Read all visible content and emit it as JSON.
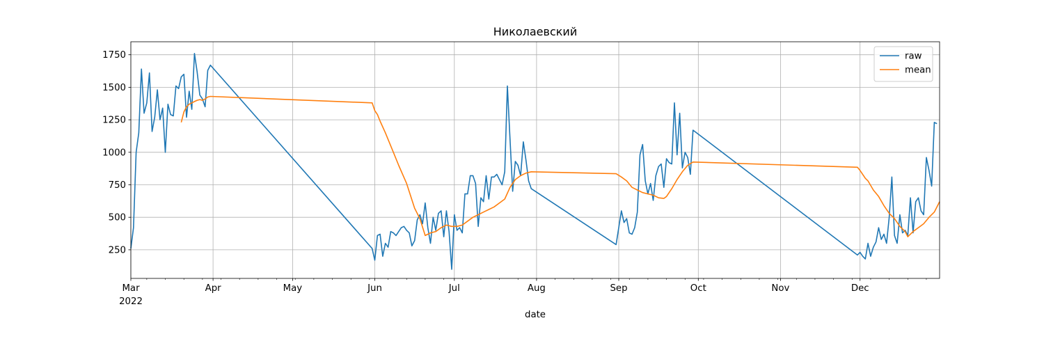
{
  "chart_data": {
    "type": "line",
    "title": "Николаевский",
    "xlabel": "date",
    "ylabel": "",
    "year_label": "2022",
    "x_range": [
      "2022-03-01",
      "2022-12-31"
    ],
    "ylim": [
      30,
      1850
    ],
    "yticks": [
      250,
      500,
      750,
      1000,
      1250,
      1500,
      1750
    ],
    "ytick_labels": [
      "250",
      "500",
      "750",
      "1000",
      "1250",
      "1500",
      "1750"
    ],
    "xticks": [
      {
        "date": "2022-03-01",
        "label": "Mar"
      },
      {
        "date": "2022-04-01",
        "label": "Apr"
      },
      {
        "date": "2022-05-01",
        "label": "May"
      },
      {
        "date": "2022-06-01",
        "label": "Jun"
      },
      {
        "date": "2022-07-01",
        "label": "Jul"
      },
      {
        "date": "2022-08-01",
        "label": "Aug"
      },
      {
        "date": "2022-09-01",
        "label": "Sep"
      },
      {
        "date": "2022-10-01",
        "label": "Oct"
      },
      {
        "date": "2022-11-01",
        "label": "Nov"
      },
      {
        "date": "2022-12-01",
        "label": "Dec"
      }
    ],
    "grid": true,
    "legend_position": "top-right",
    "series": [
      {
        "name": "raw",
        "color": "#1f77b4",
        "points": [
          [
            "2022-03-01",
            260
          ],
          [
            "2022-03-02",
            420
          ],
          [
            "2022-03-03",
            1000
          ],
          [
            "2022-03-04",
            1150
          ],
          [
            "2022-03-05",
            1640
          ],
          [
            "2022-03-06",
            1300
          ],
          [
            "2022-03-07",
            1380
          ],
          [
            "2022-03-08",
            1610
          ],
          [
            "2022-03-09",
            1160
          ],
          [
            "2022-03-10",
            1270
          ],
          [
            "2022-03-11",
            1480
          ],
          [
            "2022-03-12",
            1250
          ],
          [
            "2022-03-13",
            1340
          ],
          [
            "2022-03-14",
            1000
          ],
          [
            "2022-03-15",
            1370
          ],
          [
            "2022-03-16",
            1290
          ],
          [
            "2022-03-17",
            1280
          ],
          [
            "2022-03-18",
            1510
          ],
          [
            "2022-03-19",
            1490
          ],
          [
            "2022-03-20",
            1580
          ],
          [
            "2022-03-21",
            1600
          ],
          [
            "2022-03-22",
            1270
          ],
          [
            "2022-03-23",
            1470
          ],
          [
            "2022-03-24",
            1330
          ],
          [
            "2022-03-25",
            1760
          ],
          [
            "2022-03-26",
            1620
          ],
          [
            "2022-03-27",
            1440
          ],
          [
            "2022-03-28",
            1410
          ],
          [
            "2022-03-29",
            1350
          ],
          [
            "2022-03-30",
            1630
          ],
          [
            "2022-03-31",
            1670
          ],
          [
            "2022-05-31",
            260
          ],
          [
            "2022-06-01",
            170
          ],
          [
            "2022-06-02",
            360
          ],
          [
            "2022-06-03",
            370
          ],
          [
            "2022-06-04",
            200
          ],
          [
            "2022-06-05",
            300
          ],
          [
            "2022-06-06",
            270
          ],
          [
            "2022-06-07",
            390
          ],
          [
            "2022-06-08",
            380
          ],
          [
            "2022-06-09",
            360
          ],
          [
            "2022-06-10",
            390
          ],
          [
            "2022-06-11",
            420
          ],
          [
            "2022-06-12",
            430
          ],
          [
            "2022-06-13",
            400
          ],
          [
            "2022-06-14",
            380
          ],
          [
            "2022-06-15",
            280
          ],
          [
            "2022-06-16",
            320
          ],
          [
            "2022-06-17",
            480
          ],
          [
            "2022-06-18",
            520
          ],
          [
            "2022-06-19",
            450
          ],
          [
            "2022-06-20",
            610
          ],
          [
            "2022-06-21",
            420
          ],
          [
            "2022-06-22",
            300
          ],
          [
            "2022-06-23",
            500
          ],
          [
            "2022-06-24",
            400
          ],
          [
            "2022-06-25",
            530
          ],
          [
            "2022-06-26",
            550
          ],
          [
            "2022-06-27",
            350
          ],
          [
            "2022-06-28",
            550
          ],
          [
            "2022-06-29",
            390
          ],
          [
            "2022-06-30",
            100
          ],
          [
            "2022-07-01",
            520
          ],
          [
            "2022-07-02",
            400
          ],
          [
            "2022-07-03",
            420
          ],
          [
            "2022-07-04",
            380
          ],
          [
            "2022-07-05",
            680
          ],
          [
            "2022-07-06",
            680
          ],
          [
            "2022-07-07",
            820
          ],
          [
            "2022-07-08",
            820
          ],
          [
            "2022-07-09",
            760
          ],
          [
            "2022-07-10",
            430
          ],
          [
            "2022-07-11",
            650
          ],
          [
            "2022-07-12",
            620
          ],
          [
            "2022-07-13",
            820
          ],
          [
            "2022-07-14",
            640
          ],
          [
            "2022-07-15",
            810
          ],
          [
            "2022-07-16",
            810
          ],
          [
            "2022-07-17",
            830
          ],
          [
            "2022-07-18",
            790
          ],
          [
            "2022-07-19",
            750
          ],
          [
            "2022-07-20",
            850
          ],
          [
            "2022-07-21",
            1510
          ],
          [
            "2022-07-22",
            1100
          ],
          [
            "2022-07-23",
            700
          ],
          [
            "2022-07-24",
            930
          ],
          [
            "2022-07-25",
            900
          ],
          [
            "2022-07-26",
            820
          ],
          [
            "2022-07-27",
            1080
          ],
          [
            "2022-07-28",
            940
          ],
          [
            "2022-07-29",
            780
          ],
          [
            "2022-07-30",
            720
          ],
          [
            "2022-08-31",
            290
          ],
          [
            "2022-09-01",
            420
          ],
          [
            "2022-09-02",
            550
          ],
          [
            "2022-09-03",
            460
          ],
          [
            "2022-09-04",
            490
          ],
          [
            "2022-09-05",
            380
          ],
          [
            "2022-09-06",
            370
          ],
          [
            "2022-09-07",
            420
          ],
          [
            "2022-09-08",
            540
          ],
          [
            "2022-09-09",
            980
          ],
          [
            "2022-09-10",
            1060
          ],
          [
            "2022-09-11",
            780
          ],
          [
            "2022-09-12",
            680
          ],
          [
            "2022-09-13",
            760
          ],
          [
            "2022-09-14",
            630
          ],
          [
            "2022-09-15",
            820
          ],
          [
            "2022-09-16",
            890
          ],
          [
            "2022-09-17",
            910
          ],
          [
            "2022-09-18",
            730
          ],
          [
            "2022-09-19",
            950
          ],
          [
            "2022-09-20",
            920
          ],
          [
            "2022-09-21",
            910
          ],
          [
            "2022-09-22",
            1380
          ],
          [
            "2022-09-23",
            980
          ],
          [
            "2022-09-24",
            1300
          ],
          [
            "2022-09-25",
            880
          ],
          [
            "2022-09-26",
            1000
          ],
          [
            "2022-09-27",
            960
          ],
          [
            "2022-09-28",
            830
          ],
          [
            "2022-09-29",
            1170
          ],
          [
            "2022-11-30",
            210
          ],
          [
            "2022-12-01",
            230
          ],
          [
            "2022-12-02",
            200
          ],
          [
            "2022-12-03",
            180
          ],
          [
            "2022-12-04",
            300
          ],
          [
            "2022-12-05",
            200
          ],
          [
            "2022-12-06",
            270
          ],
          [
            "2022-12-07",
            310
          ],
          [
            "2022-12-08",
            420
          ],
          [
            "2022-12-09",
            330
          ],
          [
            "2022-12-10",
            370
          ],
          [
            "2022-12-11",
            300
          ],
          [
            "2022-12-12",
            500
          ],
          [
            "2022-12-13",
            810
          ],
          [
            "2022-12-14",
            360
          ],
          [
            "2022-12-15",
            300
          ],
          [
            "2022-12-16",
            520
          ],
          [
            "2022-12-17",
            380
          ],
          [
            "2022-12-18",
            400
          ],
          [
            "2022-12-19",
            360
          ],
          [
            "2022-12-20",
            650
          ],
          [
            "2022-12-21",
            380
          ],
          [
            "2022-12-22",
            620
          ],
          [
            "2022-12-23",
            650
          ],
          [
            "2022-12-24",
            550
          ],
          [
            "2022-12-25",
            520
          ],
          [
            "2022-12-26",
            960
          ],
          [
            "2022-12-27",
            860
          ],
          [
            "2022-12-28",
            740
          ],
          [
            "2022-12-29",
            1230
          ],
          [
            "2022-12-30",
            1220
          ]
        ]
      },
      {
        "name": "mean",
        "color": "#ff7f0e",
        "points": [
          [
            "2022-03-20",
            1230
          ],
          [
            "2022-03-21",
            1310
          ],
          [
            "2022-03-22",
            1350
          ],
          [
            "2022-03-23",
            1370
          ],
          [
            "2022-03-24",
            1380
          ],
          [
            "2022-03-25",
            1390
          ],
          [
            "2022-03-26",
            1400
          ],
          [
            "2022-03-27",
            1405
          ],
          [
            "2022-03-28",
            1400
          ],
          [
            "2022-03-29",
            1410
          ],
          [
            "2022-03-30",
            1425
          ],
          [
            "2022-03-31",
            1430
          ],
          [
            "2022-05-31",
            1380
          ],
          [
            "2022-06-01",
            1320
          ],
          [
            "2022-06-02",
            1290
          ],
          [
            "2022-06-03",
            1240
          ],
          [
            "2022-06-05",
            1150
          ],
          [
            "2022-06-08",
            1000
          ],
          [
            "2022-06-10",
            900
          ],
          [
            "2022-06-13",
            760
          ],
          [
            "2022-06-16",
            570
          ],
          [
            "2022-06-18",
            490
          ],
          [
            "2022-06-20",
            360
          ],
          [
            "2022-06-22",
            380
          ],
          [
            "2022-06-24",
            390
          ],
          [
            "2022-06-26",
            420
          ],
          [
            "2022-06-28",
            440
          ],
          [
            "2022-06-30",
            430
          ],
          [
            "2022-07-02",
            430
          ],
          [
            "2022-07-04",
            440
          ],
          [
            "2022-07-06",
            470
          ],
          [
            "2022-07-08",
            500
          ],
          [
            "2022-07-10",
            520
          ],
          [
            "2022-07-12",
            540
          ],
          [
            "2022-07-14",
            560
          ],
          [
            "2022-07-16",
            580
          ],
          [
            "2022-07-18",
            610
          ],
          [
            "2022-07-20",
            640
          ],
          [
            "2022-07-22",
            730
          ],
          [
            "2022-07-24",
            790
          ],
          [
            "2022-07-26",
            820
          ],
          [
            "2022-07-28",
            840
          ],
          [
            "2022-07-30",
            850
          ],
          [
            "2022-08-31",
            835
          ],
          [
            "2022-09-02",
            810
          ],
          [
            "2022-09-04",
            780
          ],
          [
            "2022-09-06",
            730
          ],
          [
            "2022-09-08",
            710
          ],
          [
            "2022-09-10",
            690
          ],
          [
            "2022-09-12",
            680
          ],
          [
            "2022-09-14",
            670
          ],
          [
            "2022-09-16",
            650
          ],
          [
            "2022-09-18",
            645
          ],
          [
            "2022-09-19",
            660
          ],
          [
            "2022-09-21",
            720
          ],
          [
            "2022-09-23",
            790
          ],
          [
            "2022-09-25",
            850
          ],
          [
            "2022-09-27",
            900
          ],
          [
            "2022-09-29",
            925
          ],
          [
            "2022-11-30",
            885
          ],
          [
            "2022-12-01",
            860
          ],
          [
            "2022-12-03",
            800
          ],
          [
            "2022-12-04",
            780
          ],
          [
            "2022-12-06",
            710
          ],
          [
            "2022-12-08",
            660
          ],
          [
            "2022-12-10",
            590
          ],
          [
            "2022-12-12",
            530
          ],
          [
            "2022-12-14",
            490
          ],
          [
            "2022-12-16",
            430
          ],
          [
            "2022-12-18",
            390
          ],
          [
            "2022-12-19",
            350
          ],
          [
            "2022-12-21",
            390
          ],
          [
            "2022-12-23",
            420
          ],
          [
            "2022-12-25",
            450
          ],
          [
            "2022-12-27",
            500
          ],
          [
            "2022-12-29",
            540
          ],
          [
            "2022-12-31",
            620
          ]
        ]
      }
    ]
  }
}
